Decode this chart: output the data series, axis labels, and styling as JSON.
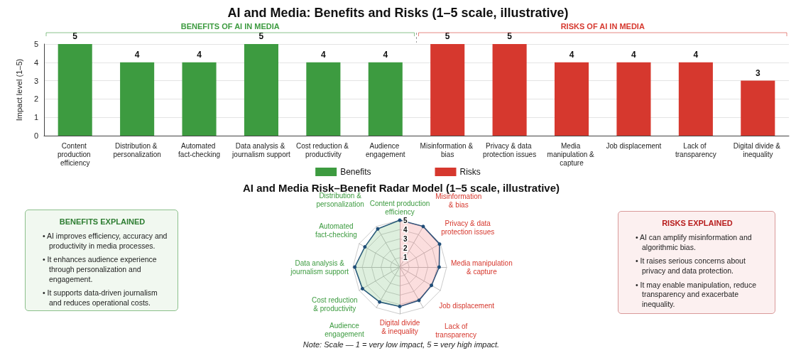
{
  "chart_data": [
    {
      "type": "bar",
      "title": "AI and Media: Benefits and Risks (1–5 scale, illustrative)",
      "ylabel": "Impact level (1–5)",
      "categories": [
        "Content production efficiency",
        "Distribution & personalization",
        "Automated fact-checking",
        "Data analysis & journalism support",
        "Cost reduction & productivity",
        "Audience engagement",
        "Misinformation & bias",
        "Privacy & data protection issues",
        "Media manipulation & capture",
        "Job displacement",
        "Lack of transparency",
        "Digital divide & inequality"
      ],
      "series": [
        {
          "name": "Benefits",
          "color": "#3d9b40",
          "values": [
            5,
            4,
            4,
            5,
            4,
            4,
            null,
            null,
            null,
            null,
            null,
            null
          ]
        },
        {
          "name": "Risks",
          "color": "#d6382e",
          "values": [
            null,
            null,
            null,
            null,
            null,
            null,
            5,
            5,
            4,
            4,
            4,
            3
          ]
        }
      ],
      "ylim": [
        0,
        5
      ],
      "yticks": [
        0,
        1,
        2,
        3,
        4,
        5
      ],
      "grid": "y",
      "legend": "bottom",
      "data_labels": true,
      "annotations": [
        "BENEFITS OF AI IN MEDIA",
        "RISKS OF AI IN MEDIA"
      ]
    },
    {
      "type": "radar",
      "title": "AI and Media Risk–Benefit Radar Model (1–5 scale, illustrative)",
      "categories": [
        "Content production efficiency",
        "Misinformation & bias",
        "Privacy & data protection issues",
        "Media manipulation & capture",
        "Job displacement",
        "Lack of transparency",
        "Digital divide & inequality",
        "Audience engagement",
        "Cost reduction & productivity",
        "Data analysis & journalism support",
        "Automated fact-checking",
        "Distribution & personalization"
      ],
      "series": [
        {
          "color": "#1f4e79",
          "values": [
            5,
            5,
            4.9,
            4.2,
            3.9,
            4.1,
            4.2,
            4.3,
            4.6,
            4.8,
            4.3,
            4.7
          ]
        }
      ],
      "ylim": [
        0,
        5
      ],
      "yticks": [
        1,
        2,
        3,
        4,
        5
      ],
      "marker": "circle",
      "annotations": [
        "Note: Scale — 1 = very low impact, 5 = very high impact."
      ]
    },
    {
      "type": "other",
      "title": "BENEFITS EXPLAINED",
      "annotations": [
        "• AI improves efficiency, accuracy and productivity in media processes.",
        "• It enhances audience experience through personalization and engagement.",
        "• It supports data-driven journalism and reduces operational costs."
      ]
    },
    {
      "type": "other",
      "title": "RISKS EXPLAINED",
      "annotations": [
        "• AI can amplify misinformation and algorithmic bias.",
        "• It raises serious concerns about privacy and data protection.",
        "• It may enable manipulation, reduce transparency and exacerbate inequality."
      ]
    }
  ]
}
